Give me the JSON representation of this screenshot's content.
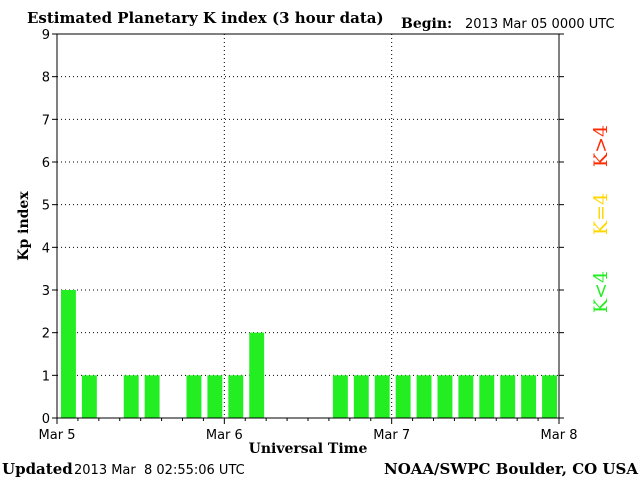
{
  "header": {
    "title": "Estimated Planetary K index (3 hour data)",
    "begin_label": "Begin:",
    "begin_value": "2013 Mar 05 0000 UTC"
  },
  "footer": {
    "updated_label": "Updated",
    "updated_value": "2013 Mar  8 02:55:06 UTC",
    "source": "NOAA/SWPC Boulder, CO USA"
  },
  "legend": [
    {
      "label": "K>4",
      "color": "#ff2a00"
    },
    {
      "label": "K=4",
      "color": "#ffd700"
    },
    {
      "label": "K<4",
      "color": "#22ee22"
    }
  ],
  "chart_data": {
    "type": "bar",
    "title": "Estimated Planetary K index (3 hour data)",
    "xlabel": "Universal Time",
    "ylabel": "Kp index",
    "ylim": [
      0,
      9
    ],
    "yticks": [
      "0",
      "1",
      "2",
      "3",
      "4",
      "5",
      "6",
      "7",
      "8",
      "9"
    ],
    "x_tick_labels": [
      "Mar 5",
      "Mar 6",
      "Mar 7",
      "Mar 8"
    ],
    "interval_hours": 3,
    "grid": true,
    "categories": [
      "2013-03-05 00:00",
      "2013-03-05 03:00",
      "2013-03-05 06:00",
      "2013-03-05 09:00",
      "2013-03-05 12:00",
      "2013-03-05 15:00",
      "2013-03-05 18:00",
      "2013-03-05 21:00",
      "2013-03-06 00:00",
      "2013-03-06 03:00",
      "2013-03-06 06:00",
      "2013-03-06 09:00",
      "2013-03-06 12:00",
      "2013-03-06 15:00",
      "2013-03-06 18:00",
      "2013-03-06 21:00",
      "2013-03-07 00:00",
      "2013-03-07 03:00",
      "2013-03-07 06:00",
      "2013-03-07 09:00",
      "2013-03-07 12:00",
      "2013-03-07 15:00",
      "2013-03-07 18:00",
      "2013-03-07 21:00"
    ],
    "values": [
      3,
      1,
      0,
      1,
      1,
      0,
      1,
      1,
      1,
      2,
      0,
      0,
      0,
      1,
      1,
      1,
      1,
      1,
      1,
      1,
      1,
      1,
      1,
      1
    ],
    "bar_color": "#22ee22"
  }
}
